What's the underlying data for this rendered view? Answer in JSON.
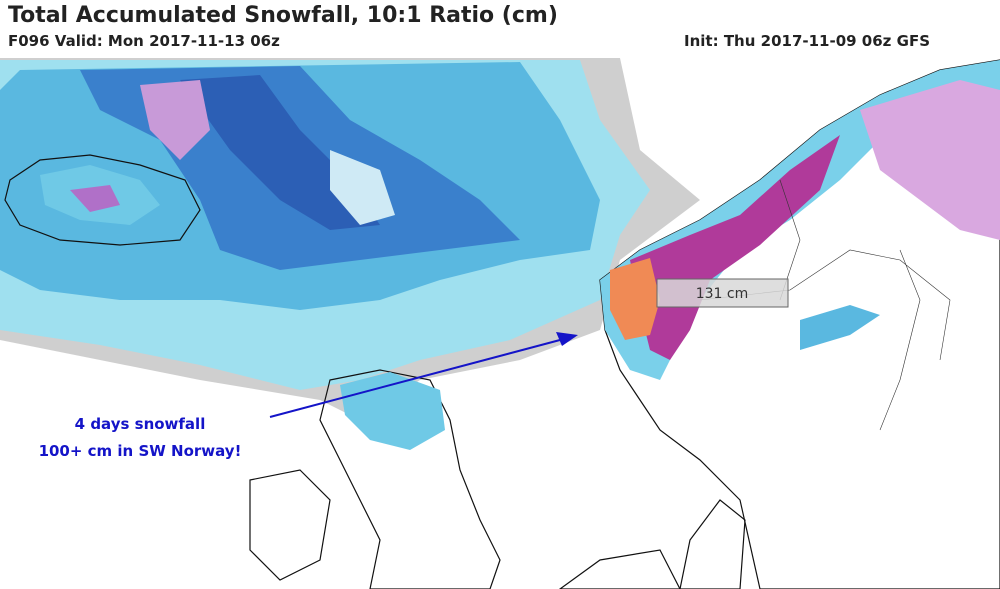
{
  "header": {
    "title": "Total Accumulated Snowfall, 10:1 Ratio (cm)",
    "valid": "F096 Valid: Mon 2017-11-13 06z",
    "init": "Init: Thu 2017-11-09 06z GFS"
  },
  "marker": {
    "label": "131 cm"
  },
  "annotation": {
    "lines": [
      "4 days snowfall",
      "100+ cm in SW Norway!"
    ]
  }
}
